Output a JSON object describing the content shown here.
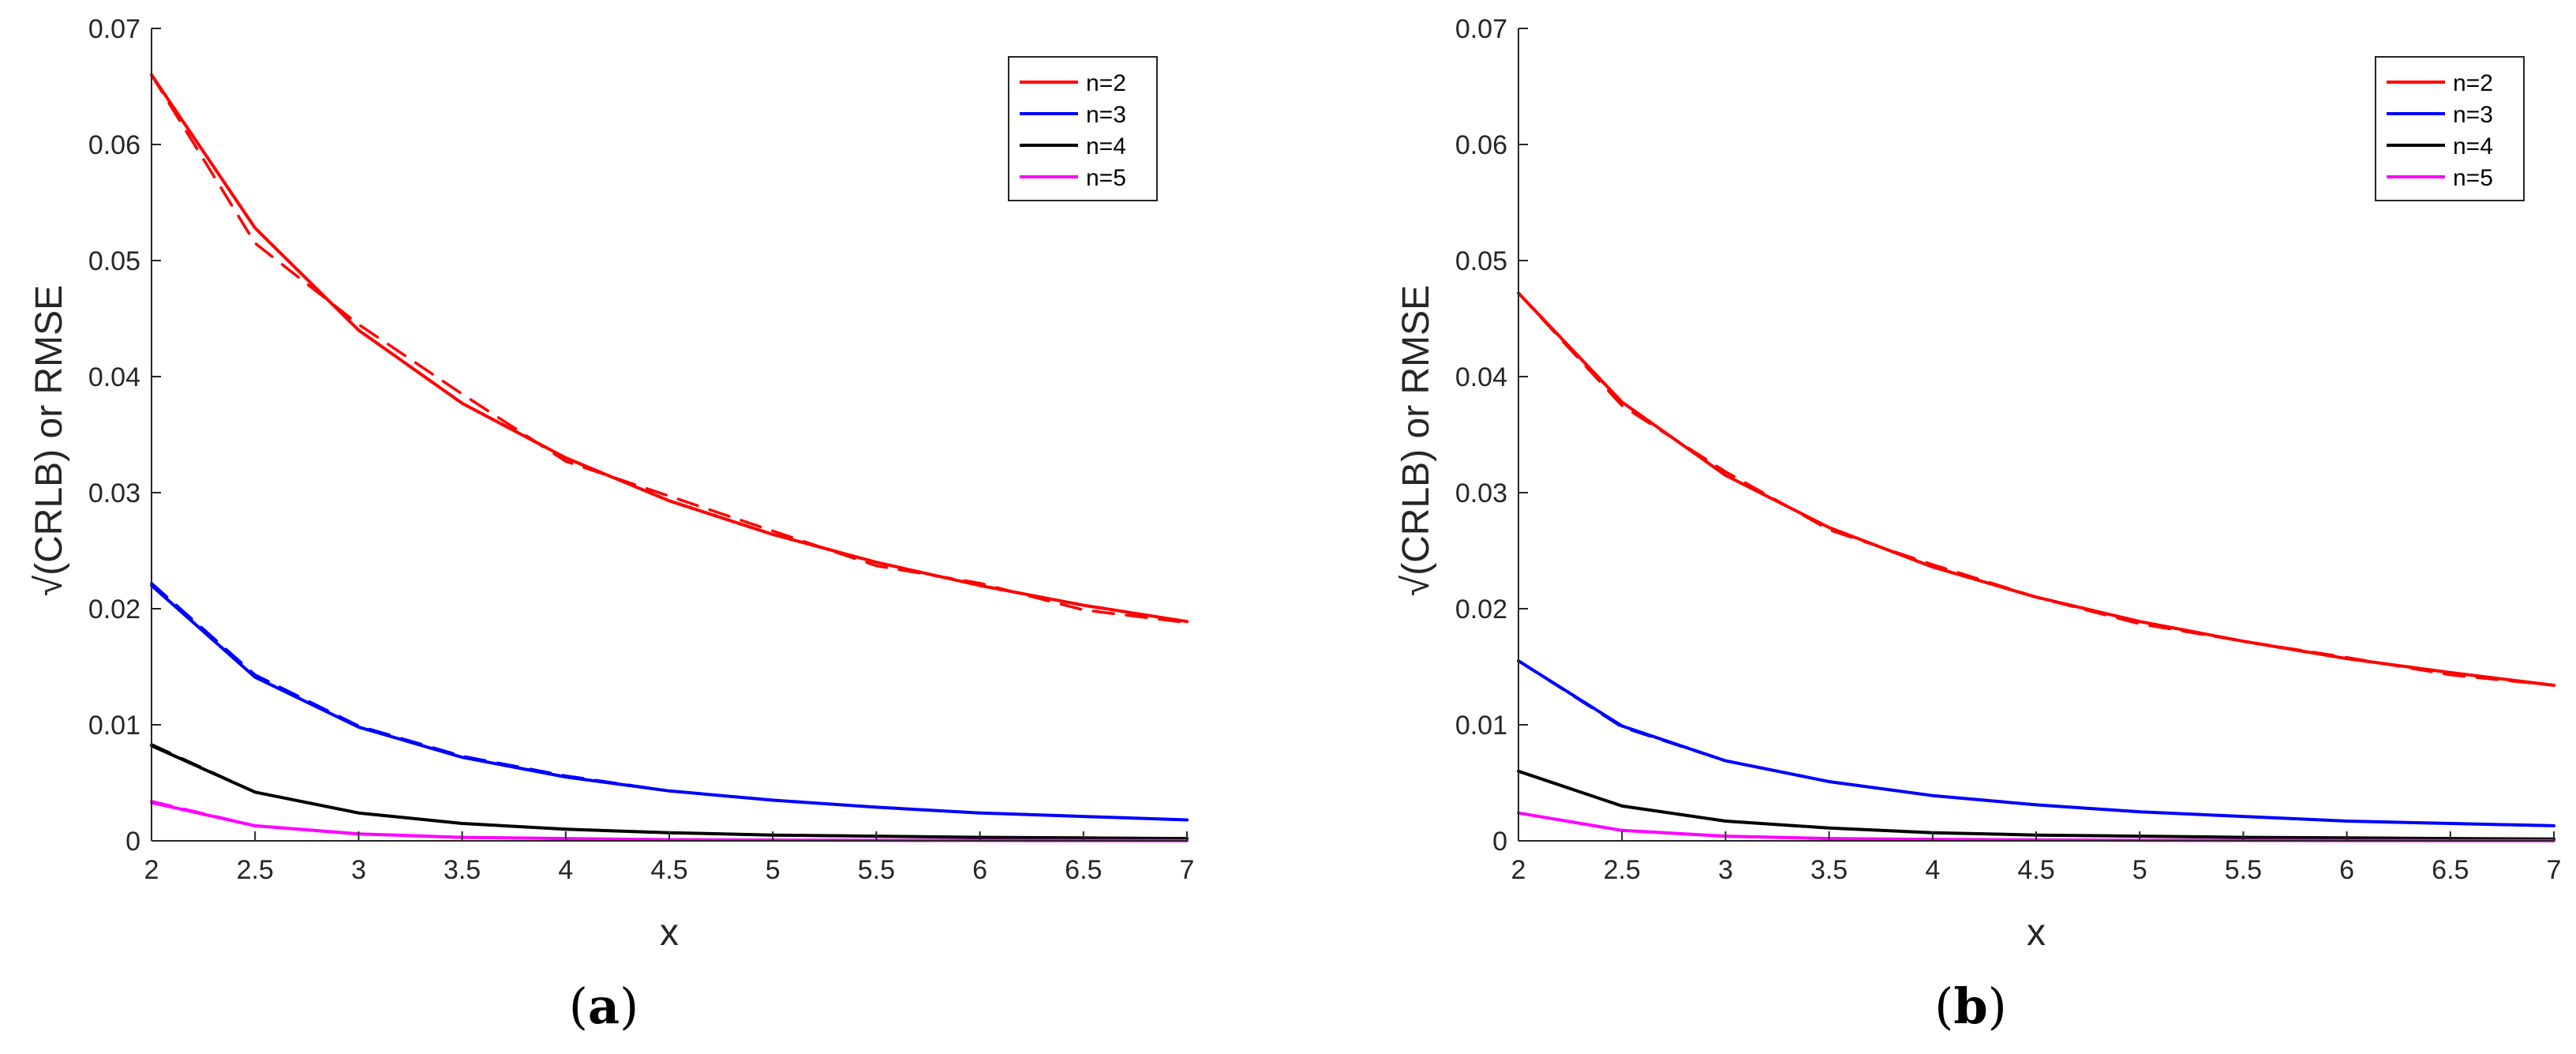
{
  "colors": {
    "n2": "#ff0000",
    "n3": "#0000ff",
    "n4": "#000000",
    "n5": "#ff00ff"
  },
  "chart_data": [
    {
      "type": "line",
      "panel_label": "a",
      "xlabel": "x",
      "ylabel": "√(CRLB) or RMSE",
      "xlim": [
        2,
        7
      ],
      "ylim": [
        0,
        0.07
      ],
      "xticks": [
        "2",
        "2.5",
        "3",
        "3.5",
        "4",
        "4.5",
        "5",
        "5.5",
        "6",
        "6.5",
        "7"
      ],
      "yticks": [
        "0",
        "0.01",
        "0.02",
        "0.03",
        "0.04",
        "0.05",
        "0.06",
        "0.07"
      ],
      "legend": {
        "position": "top-right",
        "entries": [
          "n=2",
          "n=3",
          "n=4",
          "n=5"
        ]
      },
      "x": [
        2,
        2.5,
        3,
        3.5,
        4,
        4.5,
        5,
        5.5,
        6,
        6.5,
        7
      ],
      "series": [
        {
          "name": "n=2 √(CRLB)",
          "style": "solid",
          "color_key": "n2",
          "values": [
            0.066,
            0.0528,
            0.044,
            0.0377,
            0.033,
            0.0293,
            0.0264,
            0.024,
            0.022,
            0.0203,
            0.0189
          ]
        },
        {
          "name": "n=2 RMSE",
          "style": "dashed",
          "color_key": "n2",
          "values": [
            0.066,
            0.0515,
            0.0445,
            0.0385,
            0.0327,
            0.0297,
            0.0267,
            0.0237,
            0.0222,
            0.0199,
            0.0188
          ]
        },
        {
          "name": "n=3 √(CRLB)",
          "style": "solid",
          "color_key": "n3",
          "values": [
            0.022,
            0.0141,
            0.0098,
            0.0072,
            0.0055,
            0.0043,
            0.0035,
            0.0029,
            0.0024,
            0.0021,
            0.0018
          ]
        },
        {
          "name": "n=3 RMSE",
          "style": "dashed",
          "color_key": "n3",
          "values": [
            0.0222,
            0.0143,
            0.0099,
            0.0073,
            0.0056,
            0.0043,
            0.0035,
            0.0029,
            0.0024,
            0.0021,
            0.0018
          ]
        },
        {
          "name": "n=4 √(CRLB)",
          "style": "solid",
          "color_key": "n4",
          "values": [
            0.0082,
            0.0042,
            0.0024,
            0.0015,
            0.001,
            0.0007,
            0.0005,
            0.0004,
            0.0003,
            0.00025,
            0.0002
          ]
        },
        {
          "name": "n=4 RMSE",
          "style": "dashed",
          "color_key": "n4",
          "values": [
            0.0083,
            0.0042,
            0.0024,
            0.0015,
            0.001,
            0.0007,
            0.0005,
            0.0004,
            0.0003,
            0.00025,
            0.0002
          ]
        },
        {
          "name": "n=5 √(CRLB)",
          "style": "solid",
          "color_key": "n5",
          "values": [
            0.0033,
            0.0013,
            0.0006,
            0.0003,
            0.0002,
            0.0001,
            7e-05,
            5e-05,
            4e-05,
            3e-05,
            2e-05
          ]
        },
        {
          "name": "n=5 RMSE",
          "style": "dashed",
          "color_key": "n5",
          "values": [
            0.0034,
            0.0013,
            0.0006,
            0.0003,
            0.0002,
            0.0001,
            7e-05,
            5e-05,
            4e-05,
            3e-05,
            2e-05
          ]
        }
      ]
    },
    {
      "type": "line",
      "panel_label": "b",
      "xlabel": "x",
      "ylabel": "√(CRLB) or RMSE",
      "xlim": [
        2,
        7
      ],
      "ylim": [
        0,
        0.07
      ],
      "xticks": [
        "2",
        "2.5",
        "3",
        "3.5",
        "4",
        "4.5",
        "5",
        "5.5",
        "6",
        "6.5",
        "7"
      ],
      "yticks": [
        "0",
        "0.01",
        "0.02",
        "0.03",
        "0.04",
        "0.05",
        "0.06",
        "0.07"
      ],
      "legend": {
        "position": "top-right",
        "entries": [
          "n=2",
          "n=3",
          "n=4",
          "n=5"
        ]
      },
      "x": [
        2,
        2.5,
        3,
        3.5,
        4,
        4.5,
        5,
        5.5,
        6,
        6.5,
        7
      ],
      "series": [
        {
          "name": "n=2 √(CRLB)",
          "style": "solid",
          "color_key": "n2",
          "values": [
            0.0472,
            0.0378,
            0.0315,
            0.027,
            0.0236,
            0.021,
            0.0189,
            0.0172,
            0.0157,
            0.0145,
            0.0134
          ]
        },
        {
          "name": "n=2 RMSE",
          "style": "dashed",
          "color_key": "n2",
          "values": [
            0.0472,
            0.0375,
            0.0318,
            0.0268,
            0.0238,
            0.021,
            0.0187,
            0.0172,
            0.0158,
            0.0143,
            0.0134
          ]
        },
        {
          "name": "n=3 √(CRLB)",
          "style": "solid",
          "color_key": "n3",
          "values": [
            0.0155,
            0.0099,
            0.0069,
            0.0051,
            0.0039,
            0.0031,
            0.0025,
            0.0021,
            0.0017,
            0.0015,
            0.0013
          ]
        },
        {
          "name": "n=3 RMSE",
          "style": "dashed",
          "color_key": "n3",
          "values": [
            0.0155,
            0.0098,
            0.0069,
            0.0051,
            0.0039,
            0.0031,
            0.0025,
            0.0021,
            0.0017,
            0.0015,
            0.0013
          ]
        },
        {
          "name": "n=4 √(CRLB)",
          "style": "solid",
          "color_key": "n4",
          "values": [
            0.006,
            0.003,
            0.0017,
            0.0011,
            0.0007,
            0.0005,
            0.0004,
            0.0003,
            0.00025,
            0.0002,
            0.00015
          ]
        },
        {
          "name": "n=4 RMSE",
          "style": "dashed",
          "color_key": "n4",
          "values": [
            0.006,
            0.003,
            0.0017,
            0.0011,
            0.0007,
            0.0005,
            0.0004,
            0.0003,
            0.00025,
            0.0002,
            0.00015
          ]
        },
        {
          "name": "n=5 √(CRLB)",
          "style": "solid",
          "color_key": "n5",
          "values": [
            0.0024,
            0.0009,
            0.0004,
            0.0002,
            0.00013,
            8e-05,
            5e-05,
            4e-05,
            3e-05,
            2e-05,
            2e-05
          ]
        },
        {
          "name": "n=5 RMSE",
          "style": "dashed",
          "color_key": "n5",
          "values": [
            0.0024,
            0.0009,
            0.0004,
            0.0002,
            0.00013,
            8e-05,
            5e-05,
            4e-05,
            3e-05,
            2e-05,
            2e-05
          ]
        }
      ]
    }
  ]
}
